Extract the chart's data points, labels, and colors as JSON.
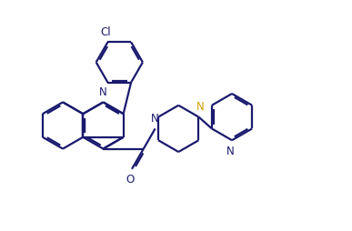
{
  "bg_color": "#ffffff",
  "line_color": "#1a1a6e",
  "heteroatom_color": "#d4a000",
  "lw": 1.6,
  "dlo": 0.055,
  "fontsize": 8.5,
  "fig_width": 3.87,
  "fig_height": 2.54,
  "dpi": 100,
  "xlim": [
    0,
    10.5
  ],
  "ylim": [
    0,
    6.8
  ]
}
